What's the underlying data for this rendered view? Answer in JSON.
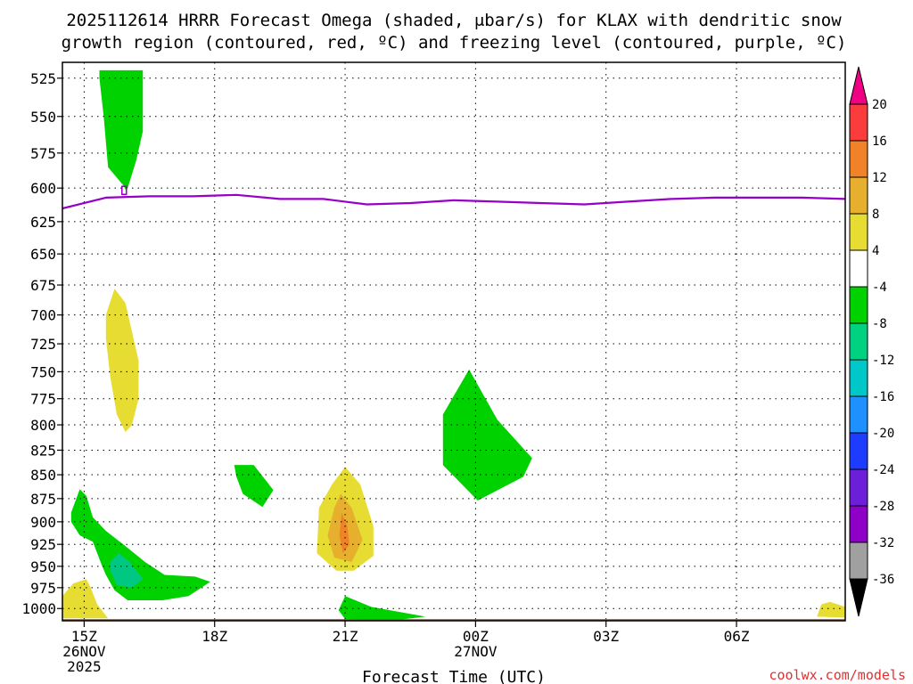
{
  "title": {
    "line1": "2025112614 HRRR Forecast Omega (shaded, μbar/s) for KLAX with dendritic snow",
    "line2": "growth region (contoured, red, ºC) and freezing level (contoured, purple, ºC)"
  },
  "credit": "coolwx.com/models",
  "chart_data": {
    "type": "heatmap",
    "title": "2025112614 HRRR Forecast Omega (shaded, μbar/s) for KLAX with dendritic snow growth region (contoured, red, ºC) and freezing level (contoured, purple, ºC)",
    "xlabel": "Forecast Time (UTC)",
    "ylabel": "",
    "xlim": [
      14.5,
      32.5
    ],
    "ylim": [
      1015,
      515
    ],
    "y_scale": "log",
    "grid": true,
    "x_ticks": [
      {
        "value": 15,
        "lines": [
          "15Z",
          "26NOV",
          "2025"
        ]
      },
      {
        "value": 18,
        "lines": [
          "18Z"
        ]
      },
      {
        "value": 21,
        "lines": [
          "21Z"
        ]
      },
      {
        "value": 24,
        "lines": [
          "00Z",
          "27NOV"
        ]
      },
      {
        "value": 27,
        "lines": [
          "03Z"
        ]
      },
      {
        "value": 30,
        "lines": [
          "06Z"
        ]
      }
    ],
    "y_ticks": [
      525,
      550,
      575,
      600,
      625,
      650,
      675,
      700,
      725,
      750,
      775,
      800,
      825,
      850,
      875,
      900,
      925,
      950,
      975,
      1000
    ],
    "colorbar": {
      "ticks": [
        "20",
        "16",
        "12",
        "8",
        "4",
        "-4",
        "-8",
        "-12",
        "-16",
        "-20",
        "-24",
        "-28",
        "-32",
        "-36"
      ],
      "bins": [
        {
          "color": "#000000",
          "range": "<-36"
        },
        {
          "color": "#a0a0a0",
          "range": "-36 to -32"
        },
        {
          "color": "#8e00c8",
          "range": "-32 to -28"
        },
        {
          "color": "#6c1ed8",
          "range": "-28 to -24"
        },
        {
          "color": "#1e3cff",
          "range": "-24 to -20"
        },
        {
          "color": "#1e90ff",
          "range": "-20 to -16"
        },
        {
          "color": "#00c8c8",
          "range": "-16 to -12"
        },
        {
          "color": "#00d282",
          "range": "-12 to -8"
        },
        {
          "color": "#00d200",
          "range": "-8 to -4"
        },
        {
          "color": "#ffffff",
          "range": "-4 to 4"
        },
        {
          "color": "#e6dc32",
          "range": "4 to 8"
        },
        {
          "color": "#e6af2d",
          "range": "8 to 12"
        },
        {
          "color": "#f08228",
          "range": "12 to 16"
        },
        {
          "color": "#fa3c3c",
          "range": "16 to 20"
        },
        {
          "color": "#f00082",
          "range": ">20"
        }
      ]
    },
    "shaded_regions": [
      {
        "name": "upper-ascent",
        "color": "#00d200",
        "points": [
          [
            15.35,
            520
          ],
          [
            16.35,
            520
          ],
          [
            16.35,
            560
          ],
          [
            16.2,
            580
          ],
          [
            16.0,
            600
          ],
          [
            15.95,
            601
          ],
          [
            15.9,
            598
          ],
          [
            15.55,
            585
          ],
          [
            15.45,
            550
          ],
          [
            15.35,
            525
          ]
        ]
      },
      {
        "name": "mid-sinking",
        "color": "#e6dc32",
        "points": [
          [
            15.5,
            700
          ],
          [
            15.7,
            678
          ],
          [
            15.95,
            690
          ],
          [
            16.25,
            740
          ],
          [
            16.25,
            775
          ],
          [
            16.1,
            800
          ],
          [
            15.95,
            807
          ],
          [
            15.75,
            790
          ],
          [
            15.6,
            755
          ],
          [
            15.5,
            720
          ]
        ]
      },
      {
        "name": "low-ascent-sw",
        "color": "#00d200",
        "points": [
          [
            14.7,
            890
          ],
          [
            14.9,
            865
          ],
          [
            15.05,
            872
          ],
          [
            15.2,
            895
          ],
          [
            15.5,
            910
          ],
          [
            15.9,
            925
          ],
          [
            16.4,
            945
          ],
          [
            16.85,
            960
          ],
          [
            17.55,
            962
          ],
          [
            17.9,
            968
          ],
          [
            17.4,
            985
          ],
          [
            16.8,
            990
          ],
          [
            16.0,
            990
          ],
          [
            15.7,
            978
          ],
          [
            15.5,
            960
          ],
          [
            15.4,
            948
          ],
          [
            15.2,
            922
          ],
          [
            14.9,
            915
          ],
          [
            14.7,
            900
          ]
        ]
      },
      {
        "name": "low-ascent-core",
        "color": "#00c882",
        "points": [
          [
            15.6,
            945
          ],
          [
            15.8,
            935
          ],
          [
            16.05,
            945
          ],
          [
            16.35,
            965
          ],
          [
            16.1,
            975
          ],
          [
            15.75,
            972
          ],
          [
            15.6,
            955
          ]
        ]
      },
      {
        "name": "surface-sinking-w",
        "color": "#e6dc32",
        "points": [
          [
            14.5,
            1000
          ],
          [
            14.5,
            985
          ],
          [
            14.75,
            970
          ],
          [
            15.05,
            965
          ],
          [
            15.15,
            975
          ],
          [
            15.3,
            995
          ],
          [
            15.55,
            1012
          ],
          [
            14.5,
            1012
          ]
        ]
      },
      {
        "name": "isolated-ascent",
        "color": "#00d200",
        "points": [
          [
            18.45,
            840
          ],
          [
            18.9,
            840
          ],
          [
            19.35,
            866
          ],
          [
            19.1,
            884
          ],
          [
            18.65,
            870
          ],
          [
            18.5,
            852
          ]
        ]
      },
      {
        "name": "evening-sinking",
        "color": "#e6dc32",
        "points": [
          [
            21.0,
            842
          ],
          [
            21.35,
            860
          ],
          [
            21.65,
            905
          ],
          [
            21.65,
            938
          ],
          [
            21.2,
            955
          ],
          [
            20.8,
            955
          ],
          [
            20.35,
            935
          ],
          [
            20.4,
            885
          ],
          [
            20.7,
            860
          ]
        ]
      },
      {
        "name": "evening-sinking-mod",
        "color": "#e6af2d",
        "points": [
          [
            20.9,
            870
          ],
          [
            21.15,
            885
          ],
          [
            21.4,
            920
          ],
          [
            21.15,
            945
          ],
          [
            20.75,
            940
          ],
          [
            20.6,
            915
          ],
          [
            20.75,
            885
          ]
        ]
      },
      {
        "name": "evening-sinking-strong",
        "color": "#f08228",
        "points": [
          [
            20.92,
            890
          ],
          [
            21.05,
            905
          ],
          [
            21.1,
            925
          ],
          [
            20.95,
            935
          ],
          [
            20.87,
            915
          ]
        ]
      },
      {
        "name": "overnight-ascent",
        "color": "#00d200",
        "points": [
          [
            23.25,
            790
          ],
          [
            23.85,
            748
          ],
          [
            24.5,
            795
          ],
          [
            25.3,
            833
          ],
          [
            25.1,
            852
          ],
          [
            24.05,
            877
          ],
          [
            23.25,
            840
          ]
        ]
      },
      {
        "name": "surface-ascent",
        "color": "#00d200",
        "points": [
          [
            20.85,
            1002
          ],
          [
            21.0,
            985
          ],
          [
            21.6,
            998
          ],
          [
            22.85,
            1010
          ],
          [
            22.2,
            1014
          ],
          [
            21.0,
            1013
          ]
        ]
      },
      {
        "name": "surface-sinking-e",
        "color": "#e6dc32",
        "points": [
          [
            31.85,
            1010
          ],
          [
            31.95,
            995
          ],
          [
            32.15,
            992
          ],
          [
            32.5,
            998
          ],
          [
            32.5,
            1011
          ]
        ]
      }
    ],
    "freezing_level": {
      "color": "#9600c8",
      "x": [
        14.5,
        15.5,
        16.5,
        17.5,
        18.5,
        19.5,
        20.5,
        21.5,
        22.5,
        23.5,
        24.5,
        25.5,
        26.5,
        27.5,
        28.5,
        29.5,
        30.5,
        31.5,
        32.5
      ],
      "mb": [
        615,
        607,
        606,
        606,
        605,
        608,
        608,
        612,
        611,
        609,
        610,
        611,
        612,
        610,
        608,
        607,
        607,
        607,
        608
      ]
    },
    "ground": {
      "color": "#a0522d",
      "mb": 1013
    }
  }
}
